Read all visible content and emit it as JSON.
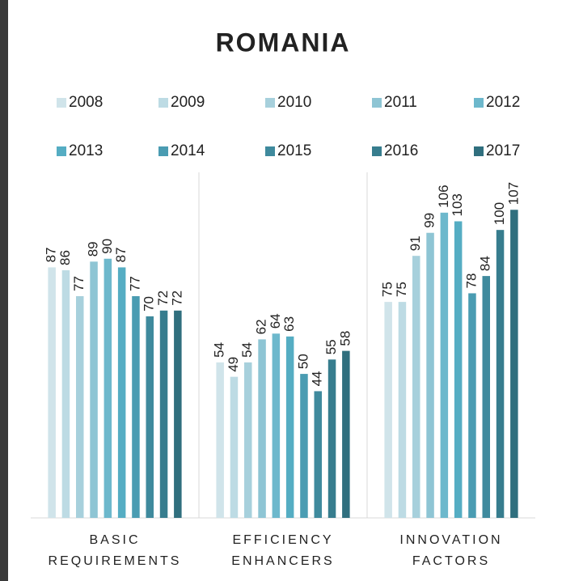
{
  "chart_data": {
    "type": "bar",
    "title": "ROMANIA",
    "categories": [
      [
        "BASIC",
        "REQUIREMENTS"
      ],
      [
        "EFFICIENCY",
        "ENHANCERS"
      ],
      [
        "INNOVATION",
        "FACTORS"
      ]
    ],
    "series": [
      {
        "name": "2008",
        "color": "#d0e4ea",
        "values": [
          87,
          54,
          75
        ]
      },
      {
        "name": "2009",
        "color": "#bddbe4",
        "values": [
          86,
          49,
          75
        ]
      },
      {
        "name": "2010",
        "color": "#a7d0dc",
        "values": [
          77,
          54,
          91
        ]
      },
      {
        "name": "2011",
        "color": "#8ec5d4",
        "values": [
          89,
          62,
          99
        ]
      },
      {
        "name": "2012",
        "color": "#6db8cc",
        "values": [
          90,
          64,
          106
        ]
      },
      {
        "name": "2013",
        "color": "#55adc3",
        "values": [
          87,
          63,
          103
        ]
      },
      {
        "name": "2014",
        "color": "#4a9cb2",
        "values": [
          77,
          50,
          78
        ]
      },
      {
        "name": "2015",
        "color": "#3f8a9d",
        "values": [
          70,
          44,
          84
        ]
      },
      {
        "name": "2016",
        "color": "#377d8e",
        "values": [
          72,
          55,
          100
        ]
      },
      {
        "name": "2017",
        "color": "#306f7e",
        "values": [
          72,
          58,
          107
        ]
      }
    ],
    "ylim": [
      0,
      120
    ]
  }
}
